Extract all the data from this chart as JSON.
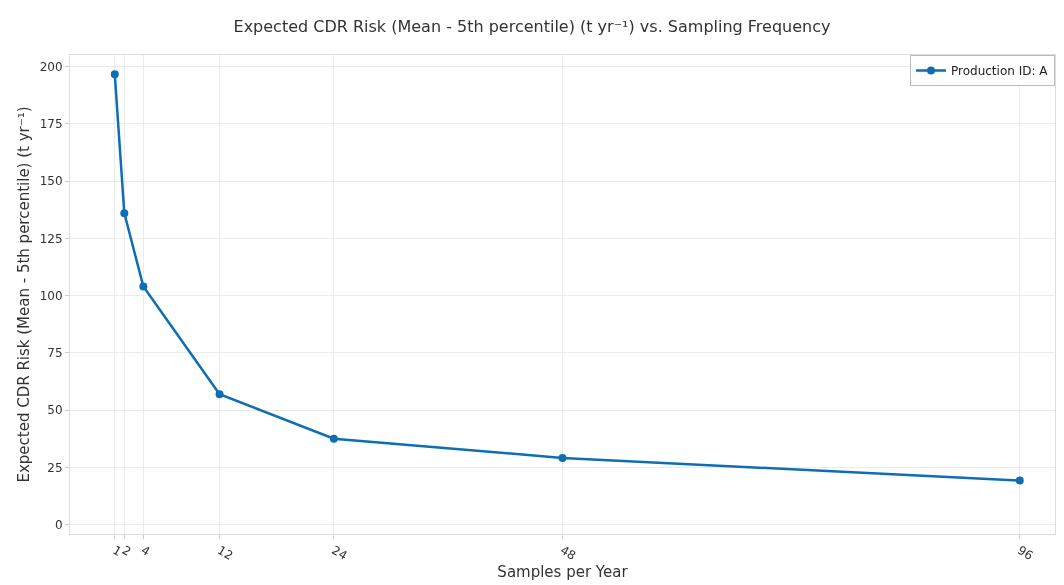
{
  "chart_data": {
    "type": "line",
    "title": "Expected CDR Risk (Mean - 5th percentile) (t yr⁻¹) vs. Sampling Frequency",
    "xlabel": "Samples per Year",
    "ylabel": "Expected CDR Risk (Mean - 5th percentile) (t yr⁻¹)",
    "x": [
      1,
      2,
      4,
      12,
      24,
      48,
      96
    ],
    "series": [
      {
        "name": "Production ID: A",
        "color": "#0f6db3",
        "values": [
          196.6,
          136,
          104,
          57,
          37.6,
          29.2,
          19.3
        ]
      }
    ],
    "xlim": [
      -3.7,
      99.7
    ],
    "xticks": [
      1,
      2,
      4,
      12,
      24,
      48,
      96
    ],
    "ylim": [
      -4,
      205
    ],
    "yticks": [
      0,
      25,
      50,
      75,
      100,
      125,
      150,
      175,
      200
    ],
    "grid": true,
    "legend": "top right",
    "marker": "circle",
    "line_style": "solid"
  }
}
